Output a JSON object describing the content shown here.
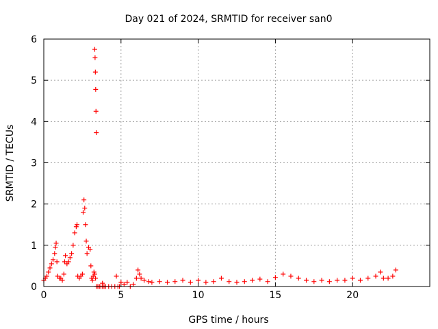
{
  "chart_data": {
    "type": "scatter",
    "title": "Day 021 of 2024, SRMTID for receiver san0",
    "xlabel": "GPS time / hours",
    "ylabel": "SRMTID / TECUs",
    "xlim": [
      0,
      25
    ],
    "ylim": [
      0,
      6
    ],
    "xticks": [
      0,
      5,
      10,
      15,
      20
    ],
    "yticks": [
      0,
      1,
      2,
      3,
      4,
      5,
      6
    ],
    "xtick_labels": [
      "0",
      "5",
      "10",
      "15",
      "20"
    ],
    "ytick_labels": [
      "0",
      "1",
      "2",
      "3",
      "4",
      "5",
      "6"
    ],
    "grid": true,
    "marker": "+",
    "color": "#ff0000",
    "series": [
      {
        "name": "san0",
        "x": [
          0.0,
          0.1,
          0.2,
          0.3,
          0.4,
          0.5,
          0.6,
          0.7,
          0.75,
          0.8,
          0.85,
          0.9,
          1.0,
          1.1,
          1.2,
          1.3,
          1.35,
          1.4,
          1.5,
          1.6,
          1.7,
          1.8,
          1.9,
          2.0,
          2.1,
          2.15,
          2.2,
          2.3,
          2.4,
          2.5,
          2.55,
          2.6,
          2.65,
          2.7,
          2.75,
          2.8,
          2.9,
          3.0,
          3.05,
          3.1,
          3.15,
          3.2,
          3.25,
          3.3,
          3.35,
          3.4,
          3.5,
          3.6,
          3.7,
          3.8,
          3.9,
          4.0,
          4.2,
          4.4,
          4.6,
          4.8,
          4.9,
          5.0,
          5.2,
          5.4,
          5.6,
          5.8,
          6.0,
          6.1,
          6.2,
          6.3,
          6.5,
          6.8,
          7.0,
          7.5,
          8.0,
          8.5,
          9.0,
          9.5,
          10.0,
          10.5,
          11.0,
          11.5,
          12.0,
          12.5,
          13.0,
          13.5,
          14.0,
          14.5,
          15.0,
          15.5,
          16.0,
          16.5,
          17.0,
          17.5,
          18.0,
          18.5,
          19.0,
          19.5,
          20.0,
          20.5,
          21.0,
          21.5,
          21.8,
          22.0,
          22.3,
          22.6,
          22.8,
          3.3,
          3.32,
          3.34,
          3.36,
          3.38,
          3.4,
          4.7,
          3.8
        ],
        "y": [
          0.15,
          0.2,
          0.25,
          0.35,
          0.45,
          0.55,
          0.65,
          0.8,
          0.95,
          1.05,
          0.6,
          0.25,
          0.2,
          0.2,
          0.15,
          0.3,
          0.6,
          0.75,
          0.55,
          0.6,
          0.7,
          0.8,
          1.0,
          1.3,
          1.45,
          1.5,
          0.25,
          0.2,
          0.25,
          0.3,
          1.8,
          2.1,
          1.9,
          1.5,
          1.1,
          0.8,
          0.95,
          0.9,
          0.5,
          0.2,
          0.15,
          0.25,
          0.35,
          0.3,
          0.2,
          0.0,
          0.0,
          0.0,
          0.0,
          0.0,
          0.0,
          0.0,
          0.0,
          0.0,
          0.0,
          0.0,
          0.0,
          0.1,
          0.05,
          0.1,
          0.0,
          0.05,
          0.2,
          0.4,
          0.3,
          0.2,
          0.15,
          0.12,
          0.1,
          0.12,
          0.1,
          0.12,
          0.15,
          0.1,
          0.15,
          0.1,
          0.12,
          0.2,
          0.12,
          0.1,
          0.12,
          0.15,
          0.18,
          0.12,
          0.22,
          0.3,
          0.25,
          0.2,
          0.15,
          0.12,
          0.15,
          0.12,
          0.15,
          0.15,
          0.2,
          0.15,
          0.2,
          0.25,
          0.35,
          0.2,
          0.2,
          0.25,
          0.4,
          5.75,
          5.55,
          5.2,
          4.78,
          4.25,
          3.73,
          0.25,
          0.08
        ]
      }
    ]
  }
}
